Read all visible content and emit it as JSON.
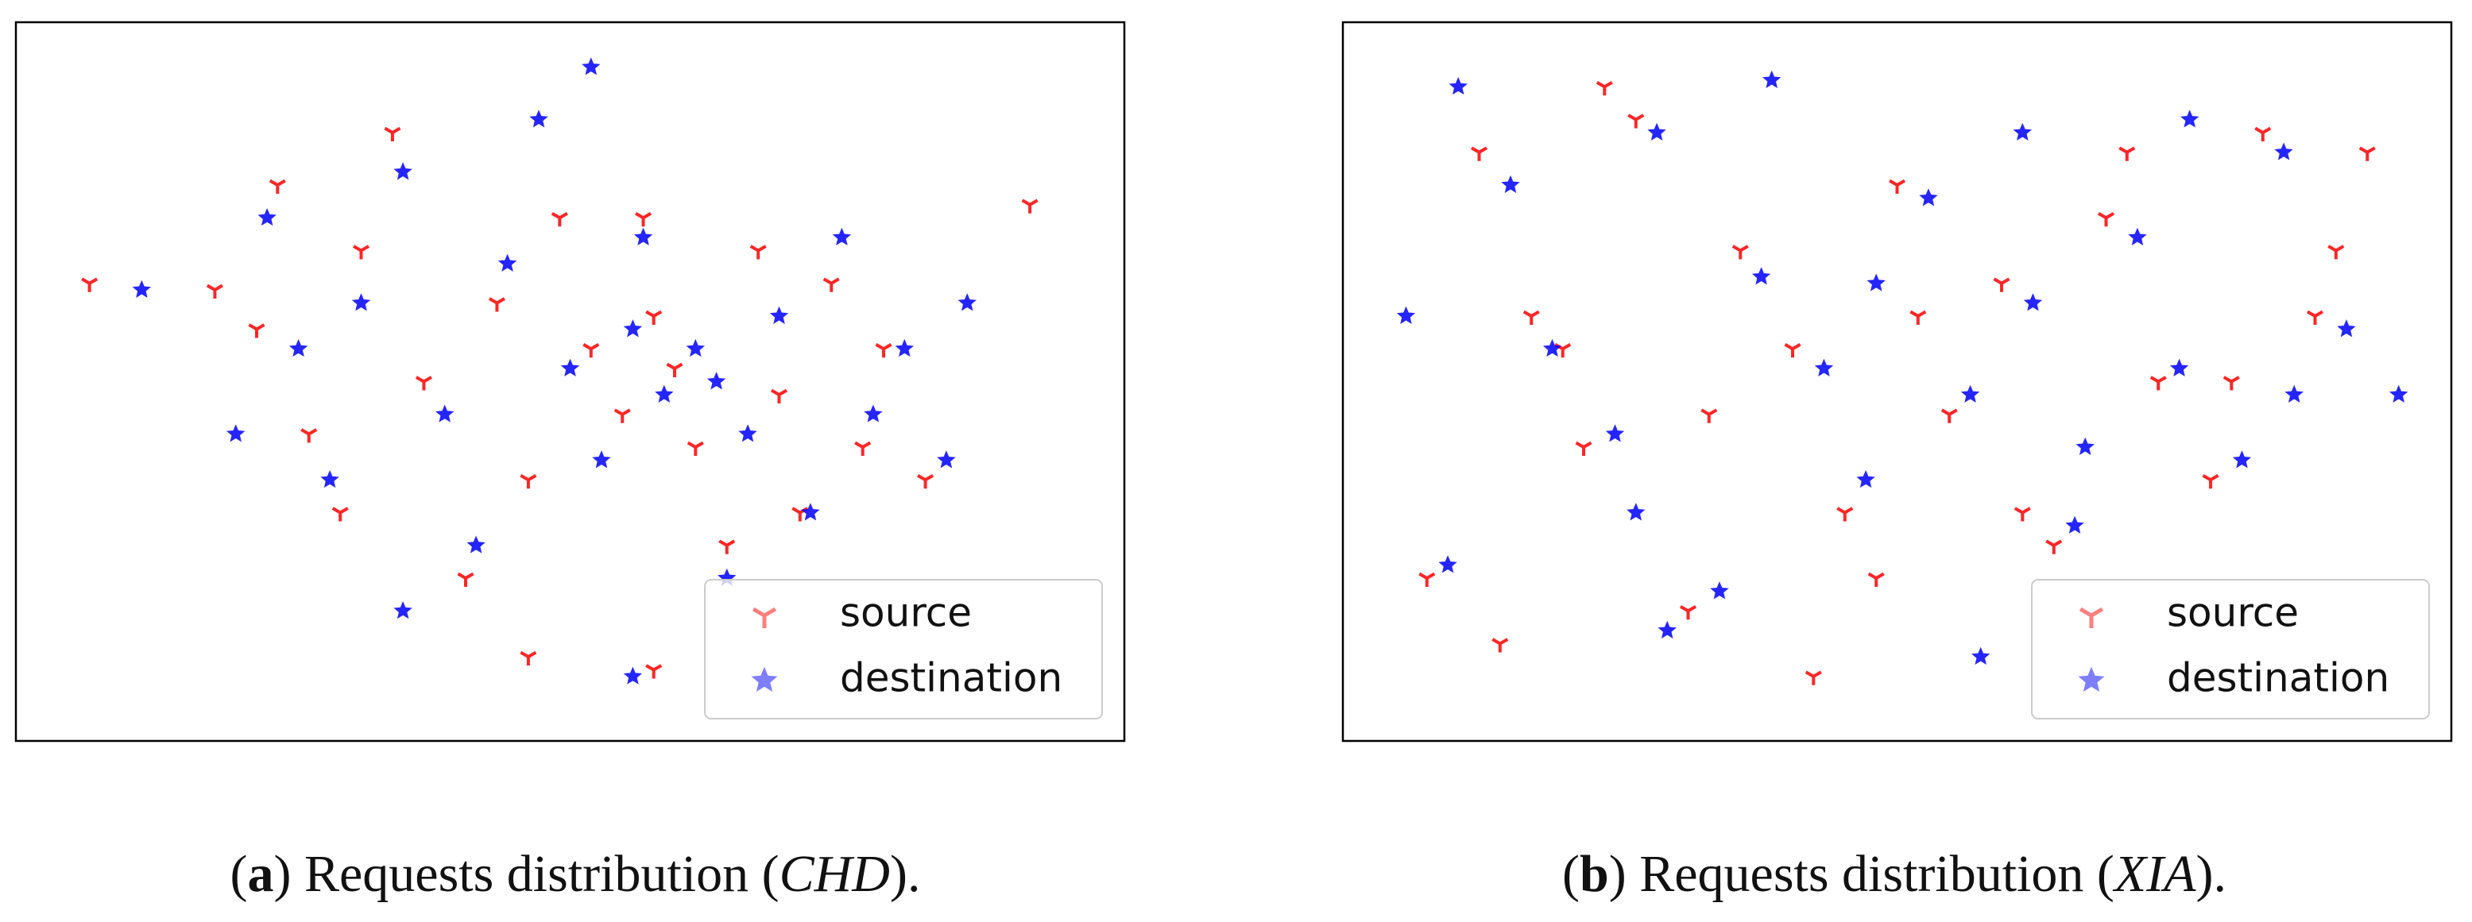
{
  "chart_data": [
    {
      "type": "scatter",
      "caption": [
        "(",
        "a",
        ") Requests distribution (",
        "CHD",
        ")."
      ],
      "xlim": [
        0,
        100
      ],
      "ylim": [
        0,
        100
      ],
      "legend": "lower right",
      "series": [
        {
          "name": "source",
          "color": "#ff0000",
          "marker": "tri_down",
          "x": [
            4,
            16,
            20,
            22,
            25,
            28,
            30,
            33,
            36,
            40,
            43,
            46,
            49,
            52,
            55,
            58,
            60,
            62,
            65,
            68,
            70,
            72,
            75,
            78,
            80,
            84,
            58,
            57,
            46,
            94
          ],
          "values": [
            65,
            64,
            58,
            80,
            42,
            30,
            70,
            88,
            50,
            20,
            62,
            35,
            75,
            55,
            45,
            60,
            52,
            40,
            25,
            70,
            48,
            30,
            65,
            40,
            55,
            35,
            6,
            75,
            8,
            77
          ]
        },
        {
          "name": "destination",
          "color": "#0000ff",
          "marker": "star",
          "x": [
            9,
            18,
            21,
            24,
            27,
            30,
            34,
            38,
            41,
            44,
            47,
            50,
            53,
            56,
            59,
            62,
            64,
            67,
            70,
            73,
            76,
            79,
            82,
            86,
            88,
            34,
            52,
            56,
            65,
            57
          ],
          "values": [
            64,
            42,
            75,
            55,
            35,
            62,
            82,
            45,
            25,
            68,
            90,
            52,
            38,
            58,
            48,
            55,
            50,
            42,
            60,
            30,
            72,
            45,
            55,
            38,
            62,
            15,
            98,
            5,
            20,
            72
          ]
        }
      ]
    },
    {
      "type": "scatter",
      "caption": [
        "(",
        "b",
        ") Requests distribution (",
        "XIA",
        ")."
      ],
      "xlim": [
        0,
        100
      ],
      "ylim": [
        0,
        100
      ],
      "legend": "lower right",
      "series": [
        {
          "name": "source",
          "color": "#ff0000",
          "marker": "tri_down",
          "x": [
            5,
            10,
            15,
            20,
            25,
            30,
            35,
            40,
            45,
            50,
            55,
            60,
            65,
            70,
            75,
            80,
            85,
            90,
            95,
            12,
            22,
            32,
            42,
            52,
            62,
            72,
            82,
            92,
            18,
            48
          ],
          "values": [
            20,
            85,
            60,
            40,
            90,
            15,
            70,
            55,
            30,
            80,
            45,
            65,
            25,
            75,
            50,
            35,
            88,
            60,
            85,
            10,
            95,
            45,
            5,
            60,
            30,
            85,
            50,
            70,
            55,
            20
          ]
        },
        {
          "name": "destination",
          "color": "#0000ff",
          "marker": "star",
          "x": [
            7,
            13,
            17,
            23,
            27,
            33,
            37,
            43,
            47,
            53,
            57,
            63,
            67,
            73,
            77,
            83,
            87,
            93,
            3,
            28,
            38,
            58,
            68,
            78,
            88,
            48,
            8,
            98,
            62,
            25
          ],
          "values": [
            22,
            80,
            55,
            42,
            88,
            18,
            66,
            52,
            35,
            78,
            48,
            62,
            28,
            72,
            52,
            38,
            85,
            58,
            60,
            12,
            96,
            8,
            40,
            90,
            48,
            65,
            95,
            48,
            88,
            30
          ]
        }
      ]
    }
  ]
}
